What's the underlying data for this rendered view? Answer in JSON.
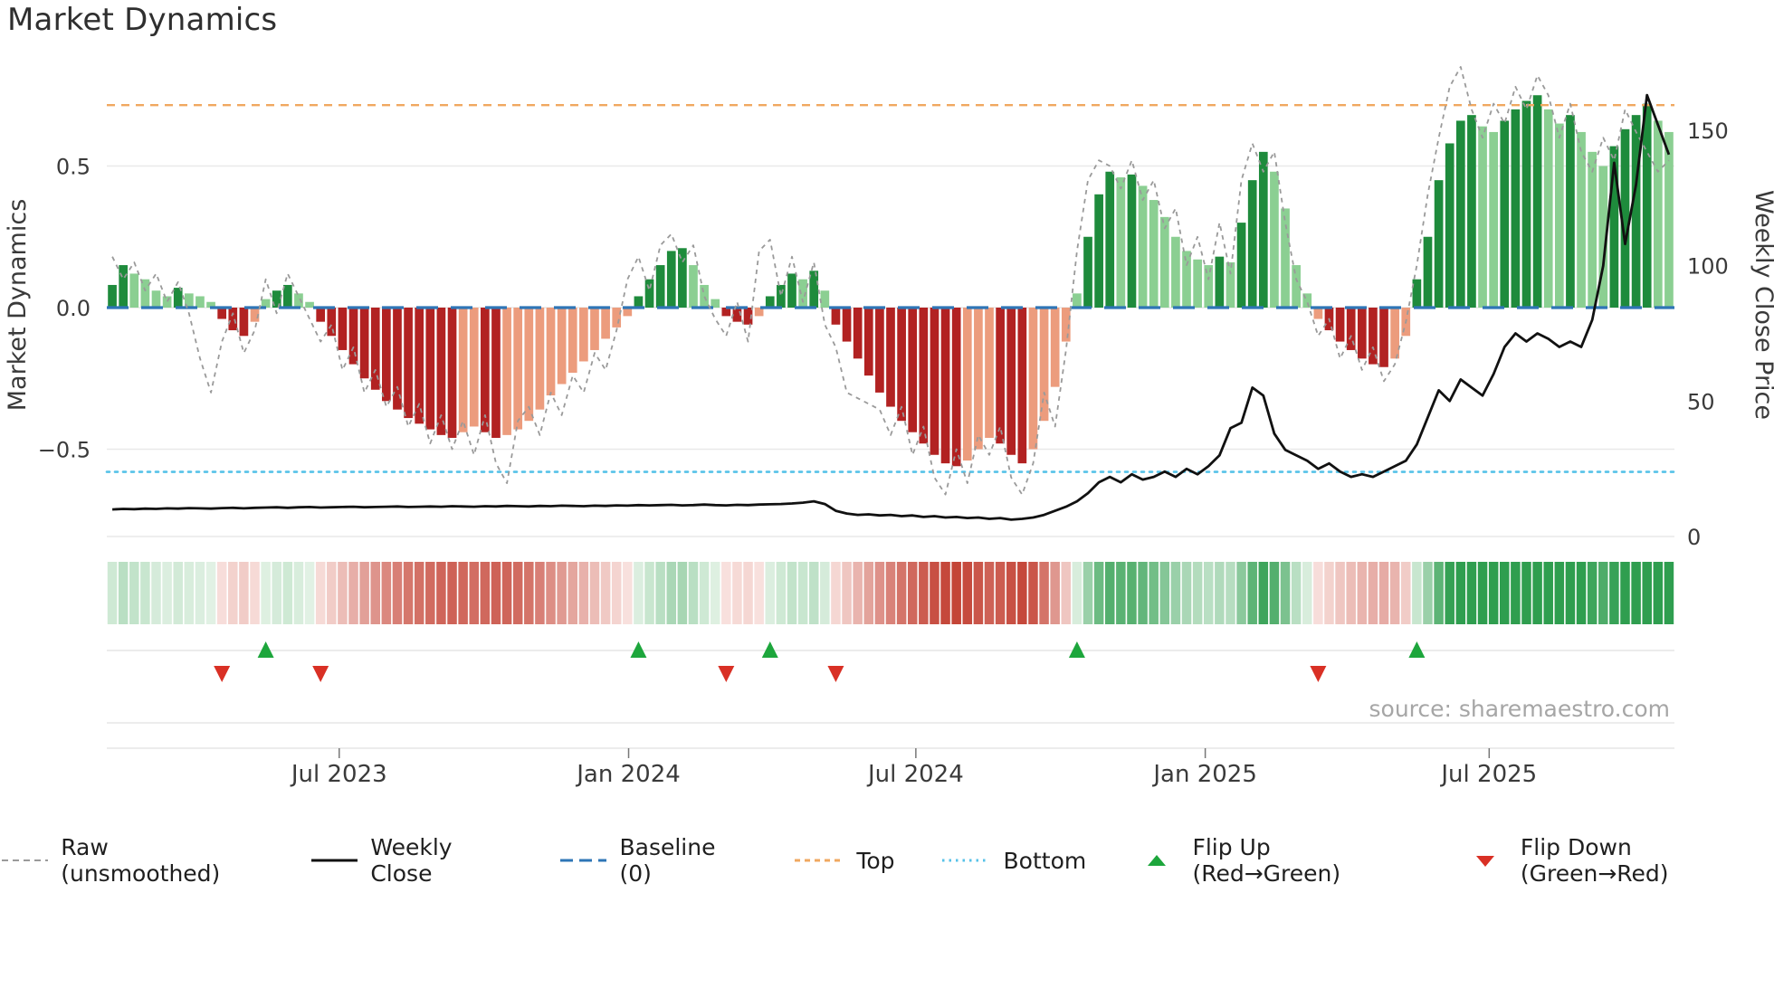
{
  "title": "Market Dynamics",
  "source": "source: sharemaestro.com",
  "axes": {
    "left_label": "Market Dynamics",
    "right_label": "Weekly Close Price",
    "left_ticks": [
      "0.5",
      "0.0",
      "−0.5"
    ],
    "left_tick_values": [
      0.5,
      0.0,
      -0.5
    ],
    "right_ticks": [
      "0",
      "50",
      "100",
      "150"
    ],
    "right_tick_values": [
      0,
      50,
      100,
      150
    ],
    "x_ticks": [
      "Jul 2023",
      "Jan 2024",
      "Jul 2024",
      "Jan 2025",
      "Jul 2025"
    ],
    "x_tick_weeks": [
      20.7,
      47.1,
      73.3,
      99.7,
      125.6
    ]
  },
  "legend": {
    "items": [
      {
        "label": "Raw (unsmoothed)",
        "glyph": "dashed-line",
        "color": "#9a9a9a"
      },
      {
        "label": "Weekly Close",
        "glyph": "solid-line",
        "color": "#111111"
      },
      {
        "label": "Baseline (0)",
        "glyph": "long-dash-line",
        "color": "#2e75b6"
      },
      {
        "label": "Top",
        "glyph": "dash-line",
        "color": "#f0a860"
      },
      {
        "label": "Bottom",
        "glyph": "dot-line",
        "color": "#56c2e8"
      },
      {
        "label": "Flip Up (Red→Green)",
        "glyph": "triangle-up",
        "color": "#1da63c"
      },
      {
        "label": "Flip Down (Green→Red)",
        "glyph": "triangle-down",
        "color": "#d93025"
      }
    ]
  },
  "colors": {
    "bar_green_dark": "#1e8b3c",
    "bar_green_light": "#8bcf92",
    "bar_red_dark": "#b22222",
    "bar_red_light": "#ec9c7d",
    "heat_green": "#2f9e4f",
    "heat_red": "#c0392b",
    "heat_pale_green": "#e7f4e9",
    "heat_pale_red": "#fbe9e6",
    "raw_line": "#9a9a9a",
    "price_line": "#111111",
    "baseline": "#2e75b6",
    "top_line": "#f0a860",
    "bottom_line": "#56c2e8",
    "flip_up": "#1da63c",
    "flip_down": "#d93025",
    "grid": "#e9e9e9",
    "tick_text": "#3a3a3a",
    "source_text": "#a6a6a6"
  },
  "chart_data": {
    "type": "bar",
    "x_unit": "week",
    "title": "Market Dynamics",
    "ylabel_left": "Market Dynamics",
    "ylabel_right": "Weekly Close Price",
    "ylim_left": [
      -0.82,
      0.83
    ],
    "ylim_right": [
      0,
      171
    ],
    "baseline": 0,
    "top_threshold": 0.715,
    "bottom_threshold": -0.58,
    "oscillator": [
      0.08,
      0.15,
      0.12,
      0.1,
      0.06,
      0.04,
      0.07,
      0.05,
      0.04,
      0.02,
      -0.04,
      -0.08,
      -0.1,
      -0.05,
      0.03,
      0.06,
      0.08,
      0.05,
      0.02,
      -0.05,
      -0.1,
      -0.15,
      -0.2,
      -0.25,
      -0.29,
      -0.33,
      -0.36,
      -0.39,
      -0.41,
      -0.43,
      -0.45,
      -0.46,
      -0.44,
      -0.42,
      -0.44,
      -0.46,
      -0.45,
      -0.43,
      -0.4,
      -0.36,
      -0.31,
      -0.27,
      -0.23,
      -0.19,
      -0.15,
      -0.11,
      -0.07,
      -0.03,
      0.04,
      0.1,
      0.15,
      0.2,
      0.21,
      0.15,
      0.08,
      0.03,
      -0.03,
      -0.05,
      -0.06,
      -0.03,
      0.04,
      0.08,
      0.12,
      0.1,
      0.13,
      0.06,
      -0.06,
      -0.12,
      -0.18,
      -0.24,
      -0.3,
      -0.35,
      -0.4,
      -0.44,
      -0.48,
      -0.52,
      -0.55,
      -0.56,
      -0.54,
      -0.5,
      -0.46,
      -0.48,
      -0.52,
      -0.55,
      -0.5,
      -0.4,
      -0.28,
      -0.12,
      0.05,
      0.25,
      0.4,
      0.48,
      0.46,
      0.47,
      0.43,
      0.38,
      0.32,
      0.25,
      0.2,
      0.17,
      0.15,
      0.18,
      0.16,
      0.3,
      0.45,
      0.55,
      0.48,
      0.35,
      0.15,
      0.05,
      -0.04,
      -0.08,
      -0.12,
      -0.15,
      -0.18,
      -0.2,
      -0.21,
      -0.18,
      -0.1,
      0.1,
      0.25,
      0.45,
      0.58,
      0.66,
      0.68,
      0.64,
      0.62,
      0.66,
      0.7,
      0.73,
      0.75,
      0.7,
      0.65,
      0.68,
      0.62,
      0.55,
      0.5,
      0.57,
      0.63,
      0.68,
      0.72,
      0.66,
      0.62
    ],
    "raw": [
      0.18,
      0.1,
      0.16,
      0.06,
      0.12,
      0.02,
      0.09,
      -0.02,
      -0.18,
      -0.3,
      -0.12,
      -0.02,
      -0.16,
      -0.08,
      0.1,
      -0.02,
      0.12,
      0.04,
      -0.04,
      -0.12,
      -0.06,
      -0.22,
      -0.14,
      -0.3,
      -0.22,
      -0.35,
      -0.28,
      -0.42,
      -0.34,
      -0.48,
      -0.38,
      -0.5,
      -0.4,
      -0.52,
      -0.38,
      -0.55,
      -0.62,
      -0.4,
      -0.35,
      -0.45,
      -0.3,
      -0.38,
      -0.24,
      -0.3,
      -0.16,
      -0.22,
      -0.08,
      0.1,
      0.18,
      0.06,
      0.22,
      0.26,
      0.16,
      0.22,
      0.04,
      -0.04,
      -0.1,
      0.02,
      -0.12,
      0.2,
      0.24,
      0.04,
      0.18,
      0.02,
      0.16,
      -0.06,
      -0.14,
      -0.3,
      -0.32,
      -0.34,
      -0.36,
      -0.45,
      -0.35,
      -0.52,
      -0.42,
      -0.6,
      -0.66,
      -0.5,
      -0.62,
      -0.45,
      -0.52,
      -0.42,
      -0.6,
      -0.66,
      -0.55,
      -0.3,
      -0.42,
      -0.15,
      0.2,
      0.45,
      0.52,
      0.5,
      0.42,
      0.52,
      0.38,
      0.45,
      0.28,
      0.35,
      0.15,
      0.25,
      0.1,
      0.3,
      0.12,
      0.45,
      0.58,
      0.48,
      0.55,
      0.3,
      0.1,
      0.02,
      -0.1,
      -0.04,
      -0.18,
      -0.1,
      -0.22,
      -0.14,
      -0.26,
      -0.2,
      -0.05,
      0.15,
      0.4,
      0.6,
      0.78,
      0.85,
      0.7,
      0.6,
      0.72,
      0.65,
      0.78,
      0.7,
      0.82,
      0.75,
      0.6,
      0.72,
      0.55,
      0.48,
      0.6,
      0.52,
      0.7,
      0.62,
      0.55,
      0.48,
      0.52
    ],
    "weekly_close": [
      10,
      10.2,
      10.1,
      10.3,
      10.2,
      10.4,
      10.3,
      10.5,
      10.4,
      10.3,
      10.5,
      10.6,
      10.4,
      10.6,
      10.7,
      10.8,
      10.6,
      10.8,
      10.9,
      10.7,
      10.8,
      10.9,
      11.0,
      10.8,
      10.9,
      11.0,
      11.1,
      10.9,
      11.0,
      11.1,
      11.0,
      11.2,
      11.1,
      11.0,
      11.2,
      11.1,
      11.3,
      11.2,
      11.1,
      11.3,
      11.2,
      11.4,
      11.3,
      11.2,
      11.4,
      11.3,
      11.5,
      11.4,
      11.6,
      11.5,
      11.6,
      11.7,
      11.5,
      11.6,
      11.8,
      11.6,
      11.5,
      11.7,
      11.6,
      11.8,
      11.9,
      12.0,
      12.2,
      12.5,
      13.0,
      12.0,
      9.5,
      8.5,
      8.0,
      8.2,
      7.8,
      8.0,
      7.5,
      7.8,
      7.2,
      7.5,
      7.0,
      7.2,
      6.8,
      7.0,
      6.5,
      6.8,
      6.2,
      6.5,
      7.0,
      8.0,
      9.5,
      11.0,
      13,
      16,
      20,
      22,
      20,
      23,
      21,
      22,
      24,
      22,
      25,
      23,
      26,
      30,
      40,
      42,
      55,
      52,
      38,
      32,
      30,
      28,
      25,
      27,
      24,
      22,
      23,
      22,
      24,
      26,
      28,
      34,
      44,
      54,
      50,
      58,
      55,
      52,
      60,
      70,
      75,
      72,
      75,
      73,
      70,
      72,
      70,
      80,
      100,
      138,
      108,
      130,
      163,
      152,
      141
    ],
    "flip_up_weeks": [
      14,
      48,
      60,
      88,
      119
    ],
    "flip_down_weeks": [
      10,
      19,
      56,
      66,
      110
    ]
  }
}
